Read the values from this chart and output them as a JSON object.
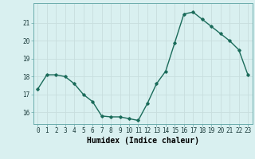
{
  "x": [
    0,
    1,
    2,
    3,
    4,
    5,
    6,
    7,
    8,
    9,
    10,
    11,
    12,
    13,
    14,
    15,
    16,
    17,
    18,
    19,
    20,
    21,
    22,
    23
  ],
  "y": [
    17.3,
    18.1,
    18.1,
    18.0,
    17.6,
    17.0,
    16.6,
    15.8,
    15.75,
    15.75,
    15.65,
    15.55,
    16.5,
    17.6,
    18.3,
    19.9,
    21.5,
    21.6,
    21.2,
    20.8,
    20.4,
    20.0,
    19.5,
    18.1
  ],
  "xlim": [
    -0.5,
    23.5
  ],
  "ylim": [
    15.35,
    22.1
  ],
  "yticks": [
    16,
    17,
    18,
    19,
    20,
    21
  ],
  "xticks": [
    0,
    1,
    2,
    3,
    4,
    5,
    6,
    7,
    8,
    9,
    10,
    11,
    12,
    13,
    14,
    15,
    16,
    17,
    18,
    19,
    20,
    21,
    22,
    23
  ],
  "xlabel": "Humidex (Indice chaleur)",
  "line_color": "#1a6b5a",
  "bg_color": "#d9f0f0",
  "grid_color": "#c8dede",
  "tick_label_fontsize": 5.5,
  "xlabel_fontsize": 7.0,
  "marker": "D",
  "marker_size": 1.8,
  "linewidth": 1.0
}
